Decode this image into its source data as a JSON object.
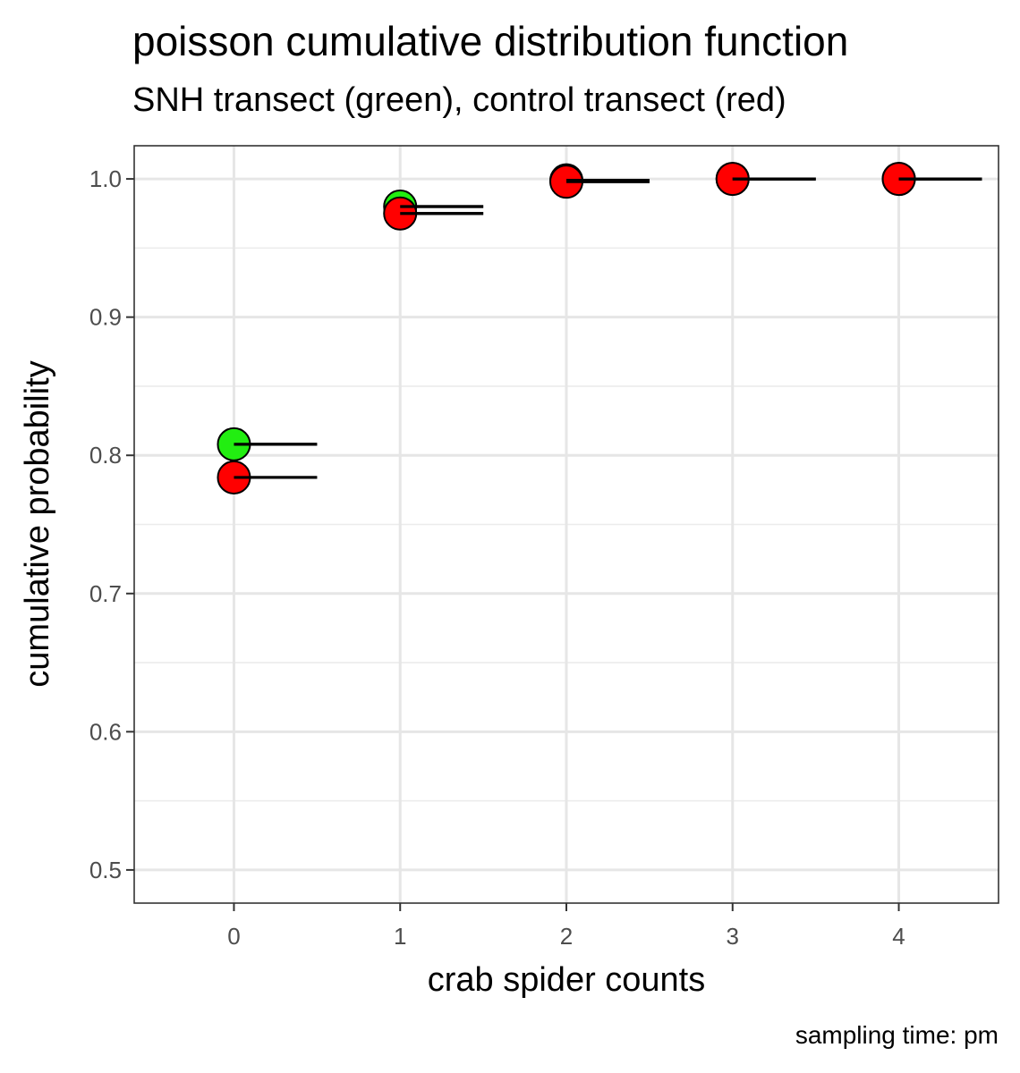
{
  "chart_data": {
    "type": "scatter",
    "title": "poisson cumulative distribution function",
    "subtitle": "SNH transect (green), control transect (red)",
    "xlabel": "crab spider counts",
    "ylabel": "cumulative probability",
    "caption": "sampling time: pm",
    "xlim": [
      -0.6,
      4.6
    ],
    "ylim": [
      0.476,
      1.024
    ],
    "x_ticks": [
      0,
      1,
      2,
      3,
      4
    ],
    "x_tick_labels": [
      "0",
      "1",
      "2",
      "3",
      "4"
    ],
    "y_ticks": [
      0.5,
      0.6,
      0.7,
      0.8,
      0.9,
      1.0
    ],
    "y_tick_labels": [
      "0.5",
      "0.6",
      "0.7",
      "0.8",
      "0.9",
      "1.0"
    ],
    "grid": true,
    "step_segment_length": 0.5,
    "series": [
      {
        "color": "#22ee11",
        "x": [
          0,
          1,
          2,
          3,
          4
        ],
        "y": [
          0.808,
          0.98,
          0.999,
          1.0,
          1.0
        ]
      },
      {
        "color": "#ff0000",
        "x": [
          0,
          1,
          2,
          3,
          4
        ],
        "y": [
          0.784,
          0.975,
          0.998,
          1.0,
          1.0
        ]
      }
    ]
  }
}
